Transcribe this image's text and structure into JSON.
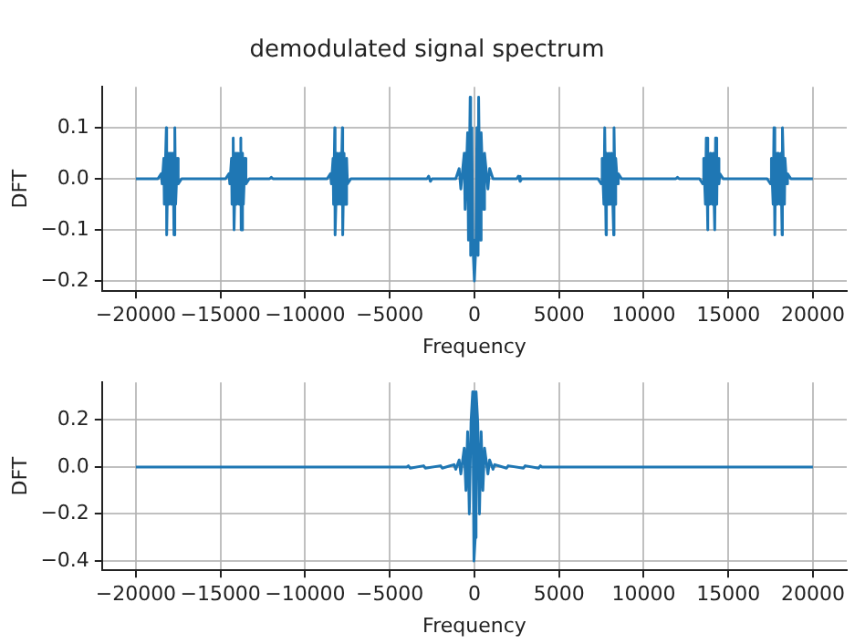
{
  "chart_data": [
    {
      "type": "line",
      "title": "demodulated signal spectrum",
      "xlabel": "Frequency",
      "ylabel": "DFT",
      "color": "#1f77b4",
      "grid": true,
      "line_style": "solid",
      "x": [
        -20000,
        -18700,
        -18500,
        -18450,
        -18350,
        -18320,
        -18200,
        -18180,
        -18100,
        -18050,
        -17950,
        -17900,
        -17800,
        -17750,
        -17700,
        -17650,
        -17550,
        -17500,
        -17300,
        -14700,
        -14500,
        -14450,
        -14350,
        -14320,
        -14250,
        -14200,
        -14100,
        -14050,
        -13950,
        -13900,
        -13800,
        -13780,
        -13700,
        -13650,
        -13550,
        -13500,
        -13300,
        -12100,
        -12000,
        -11900,
        -8700,
        -8500,
        -8450,
        -8350,
        -8320,
        -8250,
        -8230,
        -8100,
        -8050,
        -7950,
        -7900,
        -7800,
        -7780,
        -7700,
        -7650,
        -7550,
        -7500,
        -7300,
        -2800,
        -2700,
        -2600,
        -2500,
        -1100,
        -900,
        -800,
        -600,
        -550,
        -400,
        -350,
        -250,
        -220,
        -150,
        -100,
        0,
        100,
        150,
        220,
        250,
        350,
        400,
        550,
        600,
        800,
        900,
        1100,
        2500,
        2600,
        2700,
        2800,
        7300,
        7500,
        7550,
        7650,
        7700,
        7780,
        7800,
        7900,
        7950,
        8050,
        8100,
        8230,
        8250,
        8320,
        8350,
        8450,
        8500,
        8700,
        11900,
        12000,
        12100,
        13300,
        13500,
        13550,
        13650,
        13700,
        13780,
        13800,
        13900,
        13950,
        14050,
        14100,
        14200,
        14250,
        14320,
        14350,
        14450,
        14500,
        14700,
        17300,
        17500,
        17550,
        17650,
        17700,
        17750,
        17800,
        17900,
        17950,
        18050,
        18100,
        18180,
        18200,
        18320,
        18350,
        18450,
        18500,
        18700,
        20000
      ],
      "values": [
        0,
        0,
        0.01,
        -0.01,
        0.04,
        -0.05,
        0.1,
        -0.11,
        0.05,
        -0.05,
        0.05,
        -0.05,
        0.05,
        -0.11,
        0.1,
        -0.05,
        0.04,
        -0.01,
        0,
        0,
        0.01,
        -0.01,
        0.04,
        -0.05,
        0.08,
        -0.1,
        0.05,
        -0.05,
        0.05,
        -0.05,
        0.08,
        -0.1,
        0.05,
        -0.05,
        0.04,
        -0.01,
        0,
        0,
        0.003,
        0,
        0,
        0.01,
        -0.01,
        0.04,
        -0.05,
        0.1,
        -0.11,
        0.05,
        -0.05,
        0.05,
        -0.05,
        0.1,
        -0.11,
        0.05,
        -0.05,
        0.04,
        -0.01,
        0,
        0,
        0.005,
        -0.005,
        0,
        0,
        0.02,
        -0.02,
        0.05,
        -0.06,
        0.09,
        -0.12,
        0.16,
        -0.15,
        0.1,
        -0.12,
        -0.2,
        -0.12,
        0.1,
        -0.15,
        0.16,
        -0.12,
        0.09,
        -0.06,
        0.05,
        -0.02,
        0.02,
        0,
        0,
        0.005,
        -0.005,
        0,
        0,
        -0.01,
        0.04,
        -0.05,
        0.1,
        -0.11,
        0.05,
        -0.05,
        0.05,
        -0.05,
        0.05,
        -0.11,
        0.1,
        -0.05,
        0.04,
        -0.01,
        0.01,
        0,
        0,
        0.003,
        0,
        0,
        -0.01,
        0.04,
        -0.05,
        0.08,
        -0.1,
        0.05,
        -0.05,
        0.05,
        -0.05,
        0.05,
        -0.1,
        0.08,
        -0.05,
        0.04,
        -0.01,
        0.01,
        0,
        0,
        -0.01,
        0.04,
        -0.05,
        0.1,
        -0.11,
        0.05,
        -0.05,
        0.05,
        -0.05,
        0.05,
        -0.11,
        0.1,
        -0.05,
        0.04,
        -0.01,
        0.01,
        0,
        0
      ],
      "xlim": [
        -22000,
        22000
      ],
      "ylim": [
        -0.22,
        0.18
      ],
      "xticks": [
        {
          "value": -20000,
          "label": "−20000"
        },
        {
          "value": -15000,
          "label": "−15000"
        },
        {
          "value": -10000,
          "label": "−10000"
        },
        {
          "value": -5000,
          "label": "−5000"
        },
        0,
        5000,
        10000,
        15000,
        20000
      ],
      "yticks": [
        {
          "value": -0.2,
          "label": "−0.2"
        },
        {
          "value": -0.1,
          "label": "−0.1"
        },
        {
          "value": 0,
          "label": "0.0"
        },
        0.1
      ]
    },
    {
      "type": "line",
      "xlabel": "Frequency",
      "ylabel": "DFT",
      "color": "#1f77b4",
      "grid": true,
      "line_style": "solid",
      "x": [
        -20000,
        -4000,
        -3900,
        -3800,
        -3000,
        -2900,
        -2000,
        -1900,
        -1200,
        -1100,
        -900,
        -800,
        -600,
        -500,
        -400,
        -300,
        -200,
        -100,
        -50,
        0,
        50,
        100,
        200,
        300,
        400,
        500,
        600,
        800,
        900,
        1100,
        1200,
        1900,
        2000,
        2900,
        3000,
        3800,
        3900,
        4000,
        20000
      ],
      "values": [
        0,
        0,
        0.005,
        -0.005,
        0.005,
        -0.005,
        0.005,
        -0.005,
        0.01,
        -0.01,
        0.03,
        -0.03,
        0.08,
        -0.1,
        0.15,
        -0.2,
        0.19,
        0.32,
        -0.3,
        -0.4,
        -0.3,
        0.32,
        0.19,
        -0.2,
        0.15,
        -0.1,
        0.08,
        -0.03,
        0.03,
        -0.01,
        0.01,
        -0.005,
        0.005,
        -0.005,
        0.005,
        -0.005,
        0.005,
        0,
        0
      ],
      "xlim": [
        -22000,
        22000
      ],
      "ylim": [
        -0.44,
        0.36
      ],
      "xticks": [
        {
          "value": -20000,
          "label": "−20000"
        },
        {
          "value": -15000,
          "label": "−15000"
        },
        {
          "value": -10000,
          "label": "−10000"
        },
        {
          "value": -5000,
          "label": "−5000"
        },
        0,
        5000,
        10000,
        15000,
        20000
      ],
      "yticks": [
        {
          "value": -0.4,
          "label": "−0.4"
        },
        {
          "value": -0.2,
          "label": "−0.2"
        },
        {
          "value": 0,
          "label": "0.0"
        },
        0.2
      ]
    }
  ]
}
